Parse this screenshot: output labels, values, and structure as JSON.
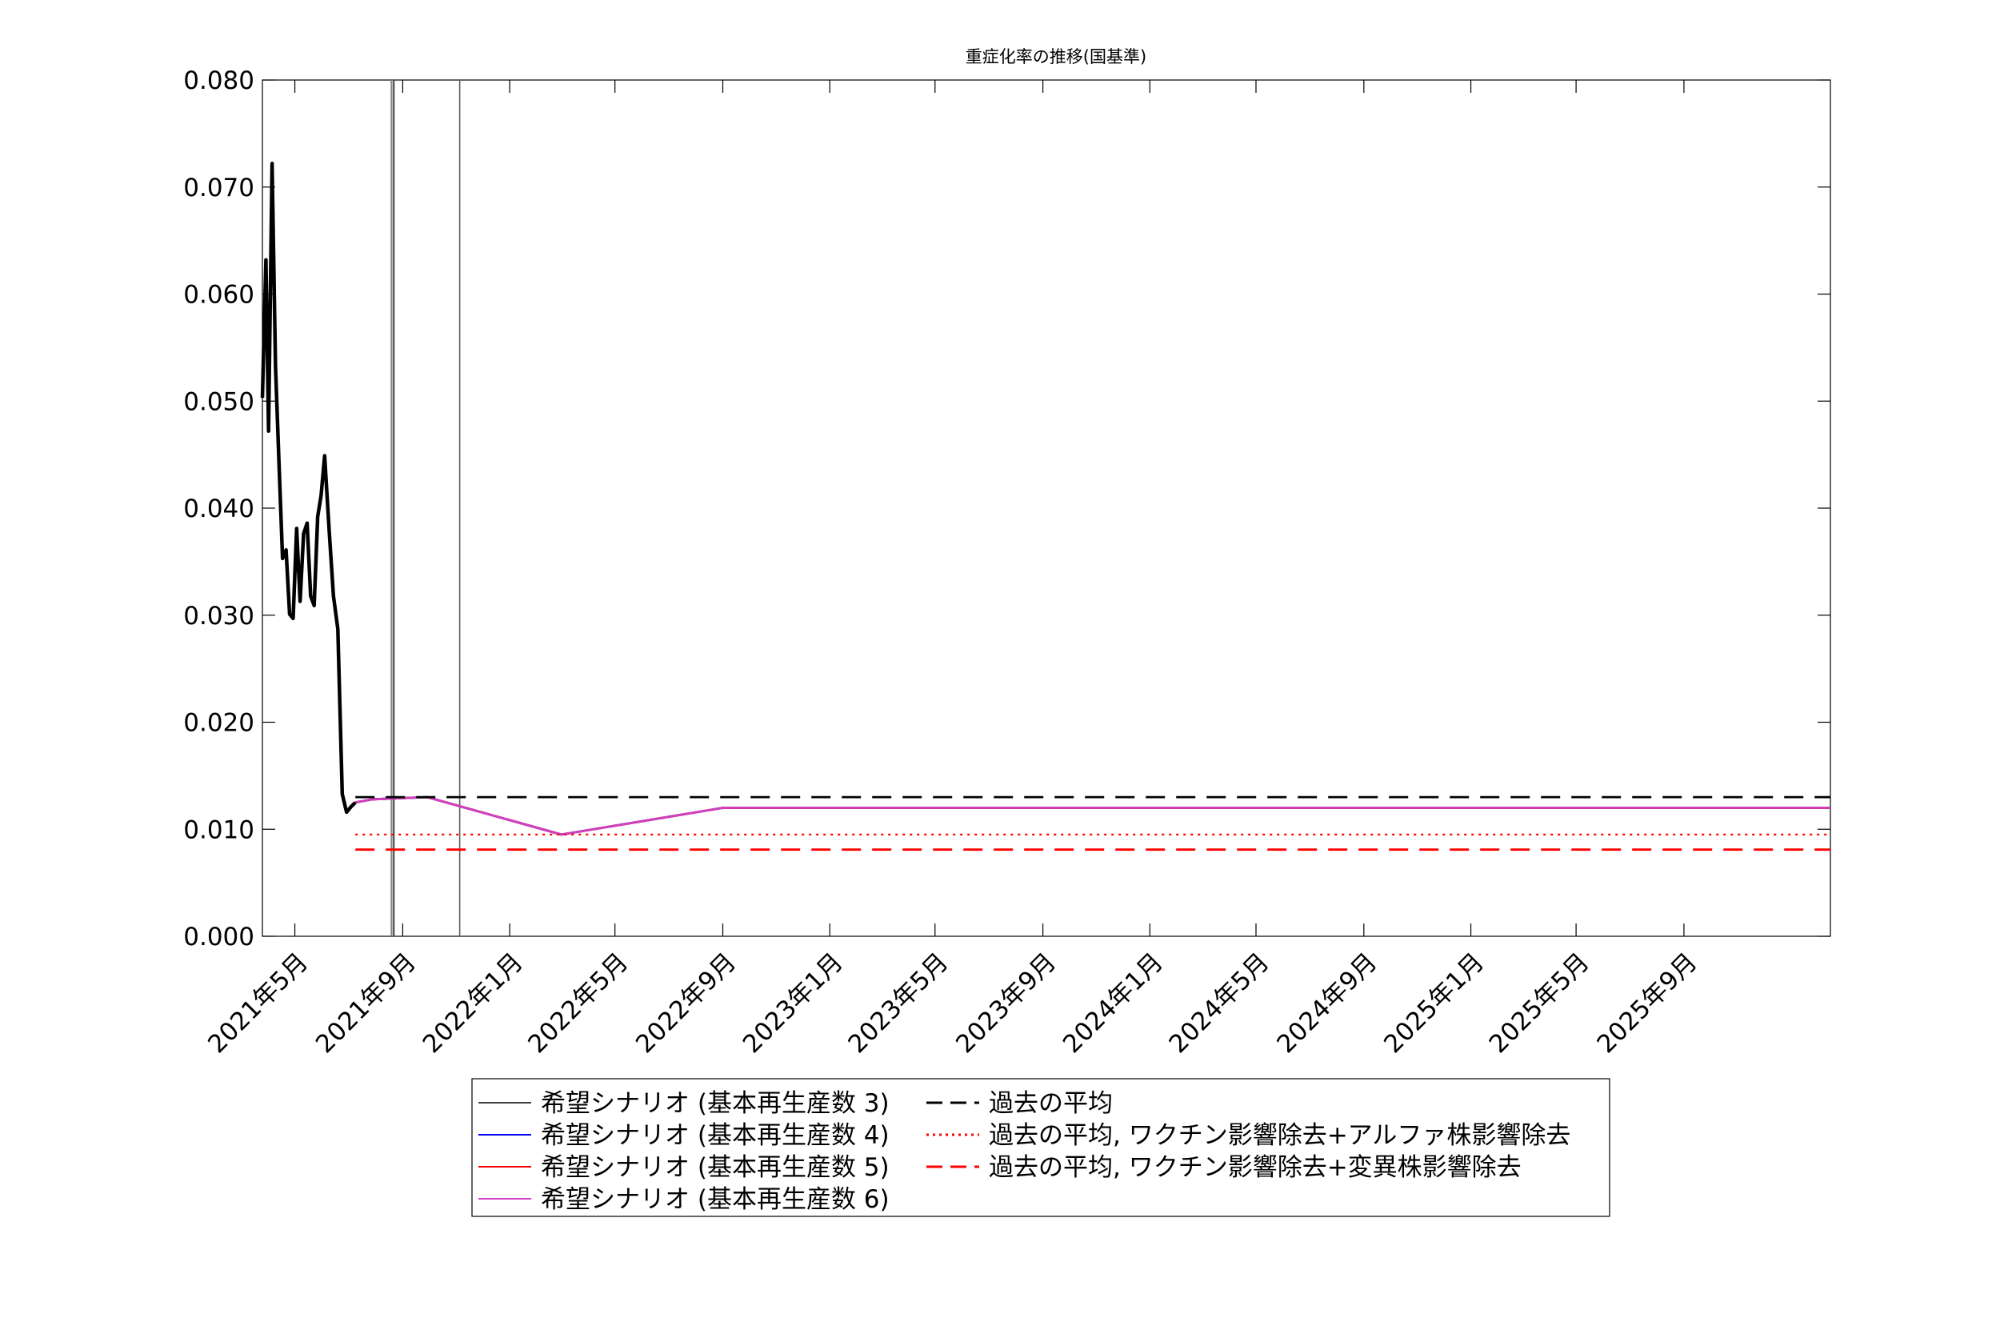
{
  "chart_data": {
    "type": "line",
    "title": "重症化率の推移(国基準)",
    "xlabel": "",
    "ylabel": "",
    "x_range": [
      "2021-03-25",
      "2026-02-15"
    ],
    "ylim": [
      0,
      0.08
    ],
    "y_ticks": [
      "0.000",
      "0.010",
      "0.020",
      "0.030",
      "0.040",
      "0.050",
      "0.060",
      "0.070",
      "0.080"
    ],
    "x_ticks": [
      {
        "date": "2021-05-01",
        "label": "2021年5月"
      },
      {
        "date": "2021-09-01",
        "label": "2021年9月"
      },
      {
        "date": "2022-01-01",
        "label": "2022年1月"
      },
      {
        "date": "2022-05-01",
        "label": "2022年5月"
      },
      {
        "date": "2022-09-01",
        "label": "2022年9月"
      },
      {
        "date": "2023-01-01",
        "label": "2023年1月"
      },
      {
        "date": "2023-05-01",
        "label": "2023年5月"
      },
      {
        "date": "2023-09-01",
        "label": "2023年9月"
      },
      {
        "date": "2024-01-01",
        "label": "2024年1月"
      },
      {
        "date": "2024-05-01",
        "label": "2024年5月"
      },
      {
        "date": "2024-09-01",
        "label": "2024年9月"
      },
      {
        "date": "2025-01-01",
        "label": "2025年1月"
      },
      {
        "date": "2025-05-01",
        "label": "2025年5月"
      },
      {
        "date": "2025-09-01",
        "label": "2025年9月"
      }
    ],
    "grid": false,
    "legend_position": "bottom-center",
    "vertical_lines": [
      {
        "date": "2021-08-19",
        "color": "#808080"
      },
      {
        "date": "2021-08-21",
        "color": "#808080"
      },
      {
        "date": "2021-08-22",
        "color": "#404040"
      },
      {
        "date": "2021-11-05",
        "color": "#606060"
      }
    ],
    "observed": {
      "color": "#000000",
      "points": [
        [
          "2021-03-25",
          0.0503
        ],
        [
          "2021-03-29",
          0.0632
        ],
        [
          "2021-04-01",
          0.0472
        ],
        [
          "2021-04-05",
          0.0722
        ],
        [
          "2021-04-09",
          0.0532
        ],
        [
          "2021-04-13",
          0.0441
        ],
        [
          "2021-04-17",
          0.0353
        ],
        [
          "2021-04-21",
          0.0361
        ],
        [
          "2021-04-25",
          0.0301
        ],
        [
          "2021-04-29",
          0.0297
        ],
        [
          "2021-05-03",
          0.0381
        ],
        [
          "2021-05-07",
          0.0313
        ],
        [
          "2021-05-11",
          0.0376
        ],
        [
          "2021-05-15",
          0.0386
        ],
        [
          "2021-05-19",
          0.0318
        ],
        [
          "2021-05-23",
          0.0309
        ],
        [
          "2021-05-27",
          0.0392
        ],
        [
          "2021-05-31",
          0.0412
        ],
        [
          "2021-06-04",
          0.0449
        ],
        [
          "2021-06-09",
          0.0381
        ],
        [
          "2021-06-14",
          0.0318
        ],
        [
          "2021-06-19",
          0.0287
        ],
        [
          "2021-06-24",
          0.0133
        ],
        [
          "2021-06-29",
          0.0116
        ],
        [
          "2021-07-04",
          0.0121
        ],
        [
          "2021-07-09",
          0.0125
        ]
      ]
    },
    "series": [
      {
        "name": "希望シナリオ (基本再生産数 3)",
        "color": "#404040",
        "dash": "",
        "points": [
          [
            "2021-07-09",
            0.0125
          ],
          [
            "2021-07-29",
            0.0128
          ],
          [
            "2021-09-29",
            0.013
          ],
          [
            "2022-03-01",
            0.0095
          ],
          [
            "2022-09-01",
            0.012
          ],
          [
            "2026-02-15",
            0.012
          ]
        ]
      },
      {
        "name": "希望シナリオ (基本再生産数 4)",
        "color": "#0000ff",
        "dash": "",
        "points": [
          [
            "2021-07-09",
            0.0125
          ],
          [
            "2021-07-29",
            0.0128
          ],
          [
            "2021-09-29",
            0.013
          ],
          [
            "2022-03-01",
            0.0095
          ],
          [
            "2022-09-01",
            0.012
          ],
          [
            "2026-02-15",
            0.012
          ]
        ]
      },
      {
        "name": "希望シナリオ (基本再生産数 5)",
        "color": "#ff0000",
        "dash": "",
        "points": [
          [
            "2021-07-09",
            0.0125
          ],
          [
            "2021-07-29",
            0.0128
          ],
          [
            "2021-09-29",
            0.013
          ],
          [
            "2022-03-01",
            0.0095
          ],
          [
            "2022-09-01",
            0.012
          ],
          [
            "2026-02-15",
            0.012
          ]
        ]
      },
      {
        "name": "希望シナリオ (基本再生産数 6)",
        "color": "#d040c0",
        "dash": "",
        "points": [
          [
            "2021-07-09",
            0.0125
          ],
          [
            "2021-07-29",
            0.0128
          ],
          [
            "2021-09-29",
            0.013
          ],
          [
            "2022-03-01",
            0.0095
          ],
          [
            "2022-09-01",
            0.012
          ],
          [
            "2026-02-15",
            0.012
          ]
        ]
      },
      {
        "name": "過去の平均",
        "color": "#000000",
        "dash": "dashed",
        "points": [
          [
            "2021-07-09",
            0.013
          ],
          [
            "2026-02-15",
            0.013
          ]
        ]
      },
      {
        "name": "過去の平均, ワクチン影響除去+アルファ株影響除去",
        "color": "#ff0000",
        "dash": "dotted",
        "points": [
          [
            "2021-07-09",
            0.0095
          ],
          [
            "2026-02-15",
            0.0095
          ]
        ]
      },
      {
        "name": "過去の平均, ワクチン影響除去+変異株影響除去",
        "color": "#ff0000",
        "dash": "dashed",
        "points": [
          [
            "2021-07-09",
            0.0081
          ],
          [
            "2026-02-15",
            0.0081
          ]
        ]
      }
    ]
  }
}
